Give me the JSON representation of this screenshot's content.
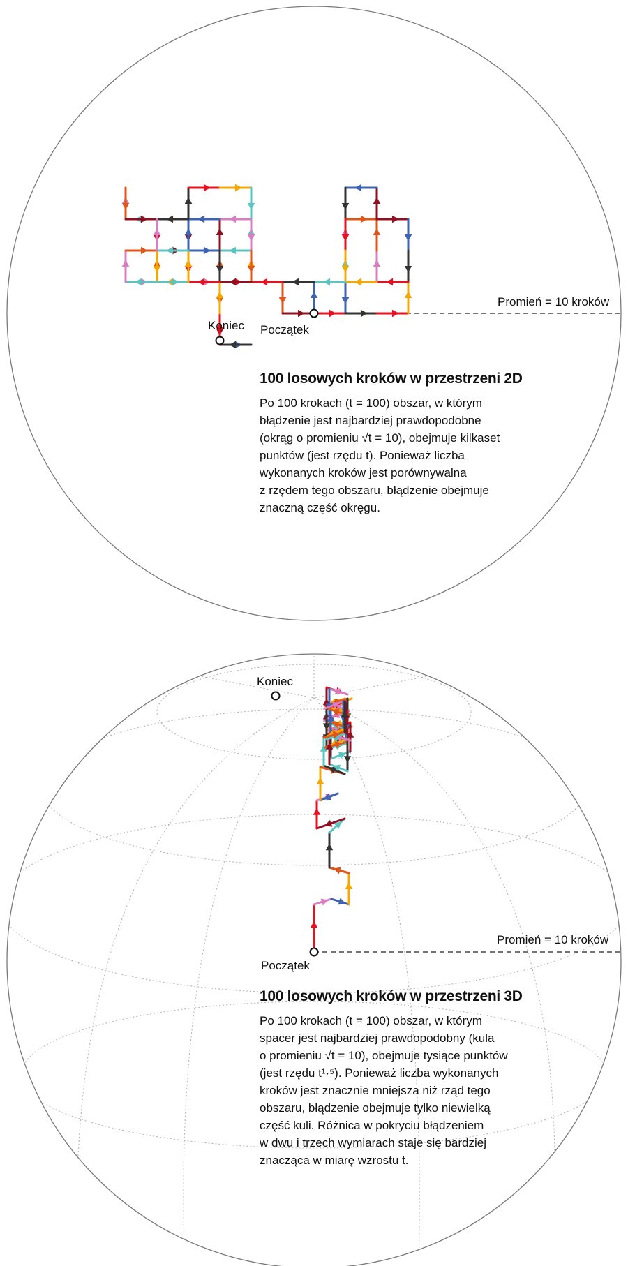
{
  "colors": {
    "outline": "#7a7a7a",
    "dash": "#222222",
    "grid": "#b5b5b5",
    "step_palette": [
      "#e8111f",
      "#f5a800",
      "#5cc4c0",
      "#d77fc0",
      "#e0551a",
      "#8f1020",
      "#3d63b3",
      "#333333"
    ]
  },
  "panel_2d": {
    "title": "100 losowych kroków w przestrzeni 2D",
    "radius_label": "Promień = 10 kroków",
    "start_label": "Początek",
    "end_label": "Koniec",
    "body_lines": [
      "Po 100 krokach (t = 100) obszar, w którym",
      "błądzenie jest najbardziej prawdopodobne",
      "(okrąg o promieniu √t = 10), obejmuje kilkaset",
      "punktów (jest rzędu t). Ponieważ liczba",
      "wykonanych kroków jest porównywalna",
      "z rzędem tego obszaru, błądzenie obejmuje",
      "znaczną część okręgu."
    ]
  },
  "panel_3d": {
    "title": "100 losowych kroków w przestrzeni 3D",
    "radius_label": "Promień = 10 kroków",
    "start_label": "Początek",
    "end_label": "Koniec",
    "body_lines": [
      "Po 100 krokach (t = 100) obszar, w którym",
      "spacer jest najbardziej prawdopodobny (kula",
      "o promieniu √t = 10), obejmuje tysiące punktów",
      "(jest rzędu t¹·⁵). Ponieważ liczba wykonanych",
      "kroków jest znacznie mniejsza niż rząd tego",
      "obszaru, błądzenie obejmuje tylko niewielką",
      "część kuli. Różnica w pokryciu błądzeniem",
      "w dwu i trzech wymiarach staje się bardziej",
      "znacząca w miarę wzrostu t."
    ]
  }
}
